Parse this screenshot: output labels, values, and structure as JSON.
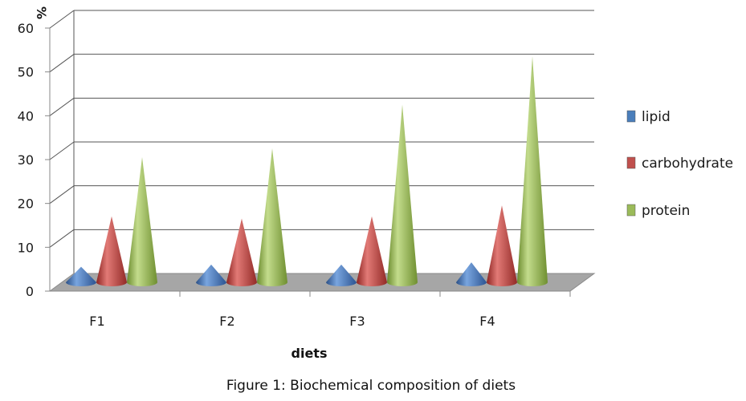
{
  "chart_data": {
    "type": "bar",
    "subtype": "3d-cone",
    "categories": [
      "F1",
      "F2",
      "F3",
      "F4"
    ],
    "series": [
      {
        "name": "lipid",
        "values": [
          3,
          3.5,
          3.5,
          4
        ],
        "color": "#4a7ebb"
      },
      {
        "name": "carbohydrate",
        "values": [
          14.5,
          14,
          14.5,
          17
        ],
        "color": "#c0504d"
      },
      {
        "name": "protein",
        "values": [
          28,
          30,
          40,
          51
        ],
        "color": "#9bbb59"
      }
    ],
    "ylabel": "%",
    "xlabel": "diets",
    "ylim": [
      0,
      60
    ],
    "yticks": [
      "0",
      "10",
      "20",
      "30",
      "40",
      "50",
      "60"
    ],
    "grid": true,
    "legend_position": "right"
  },
  "caption": "Figure 1: Biochemical composition of diets"
}
